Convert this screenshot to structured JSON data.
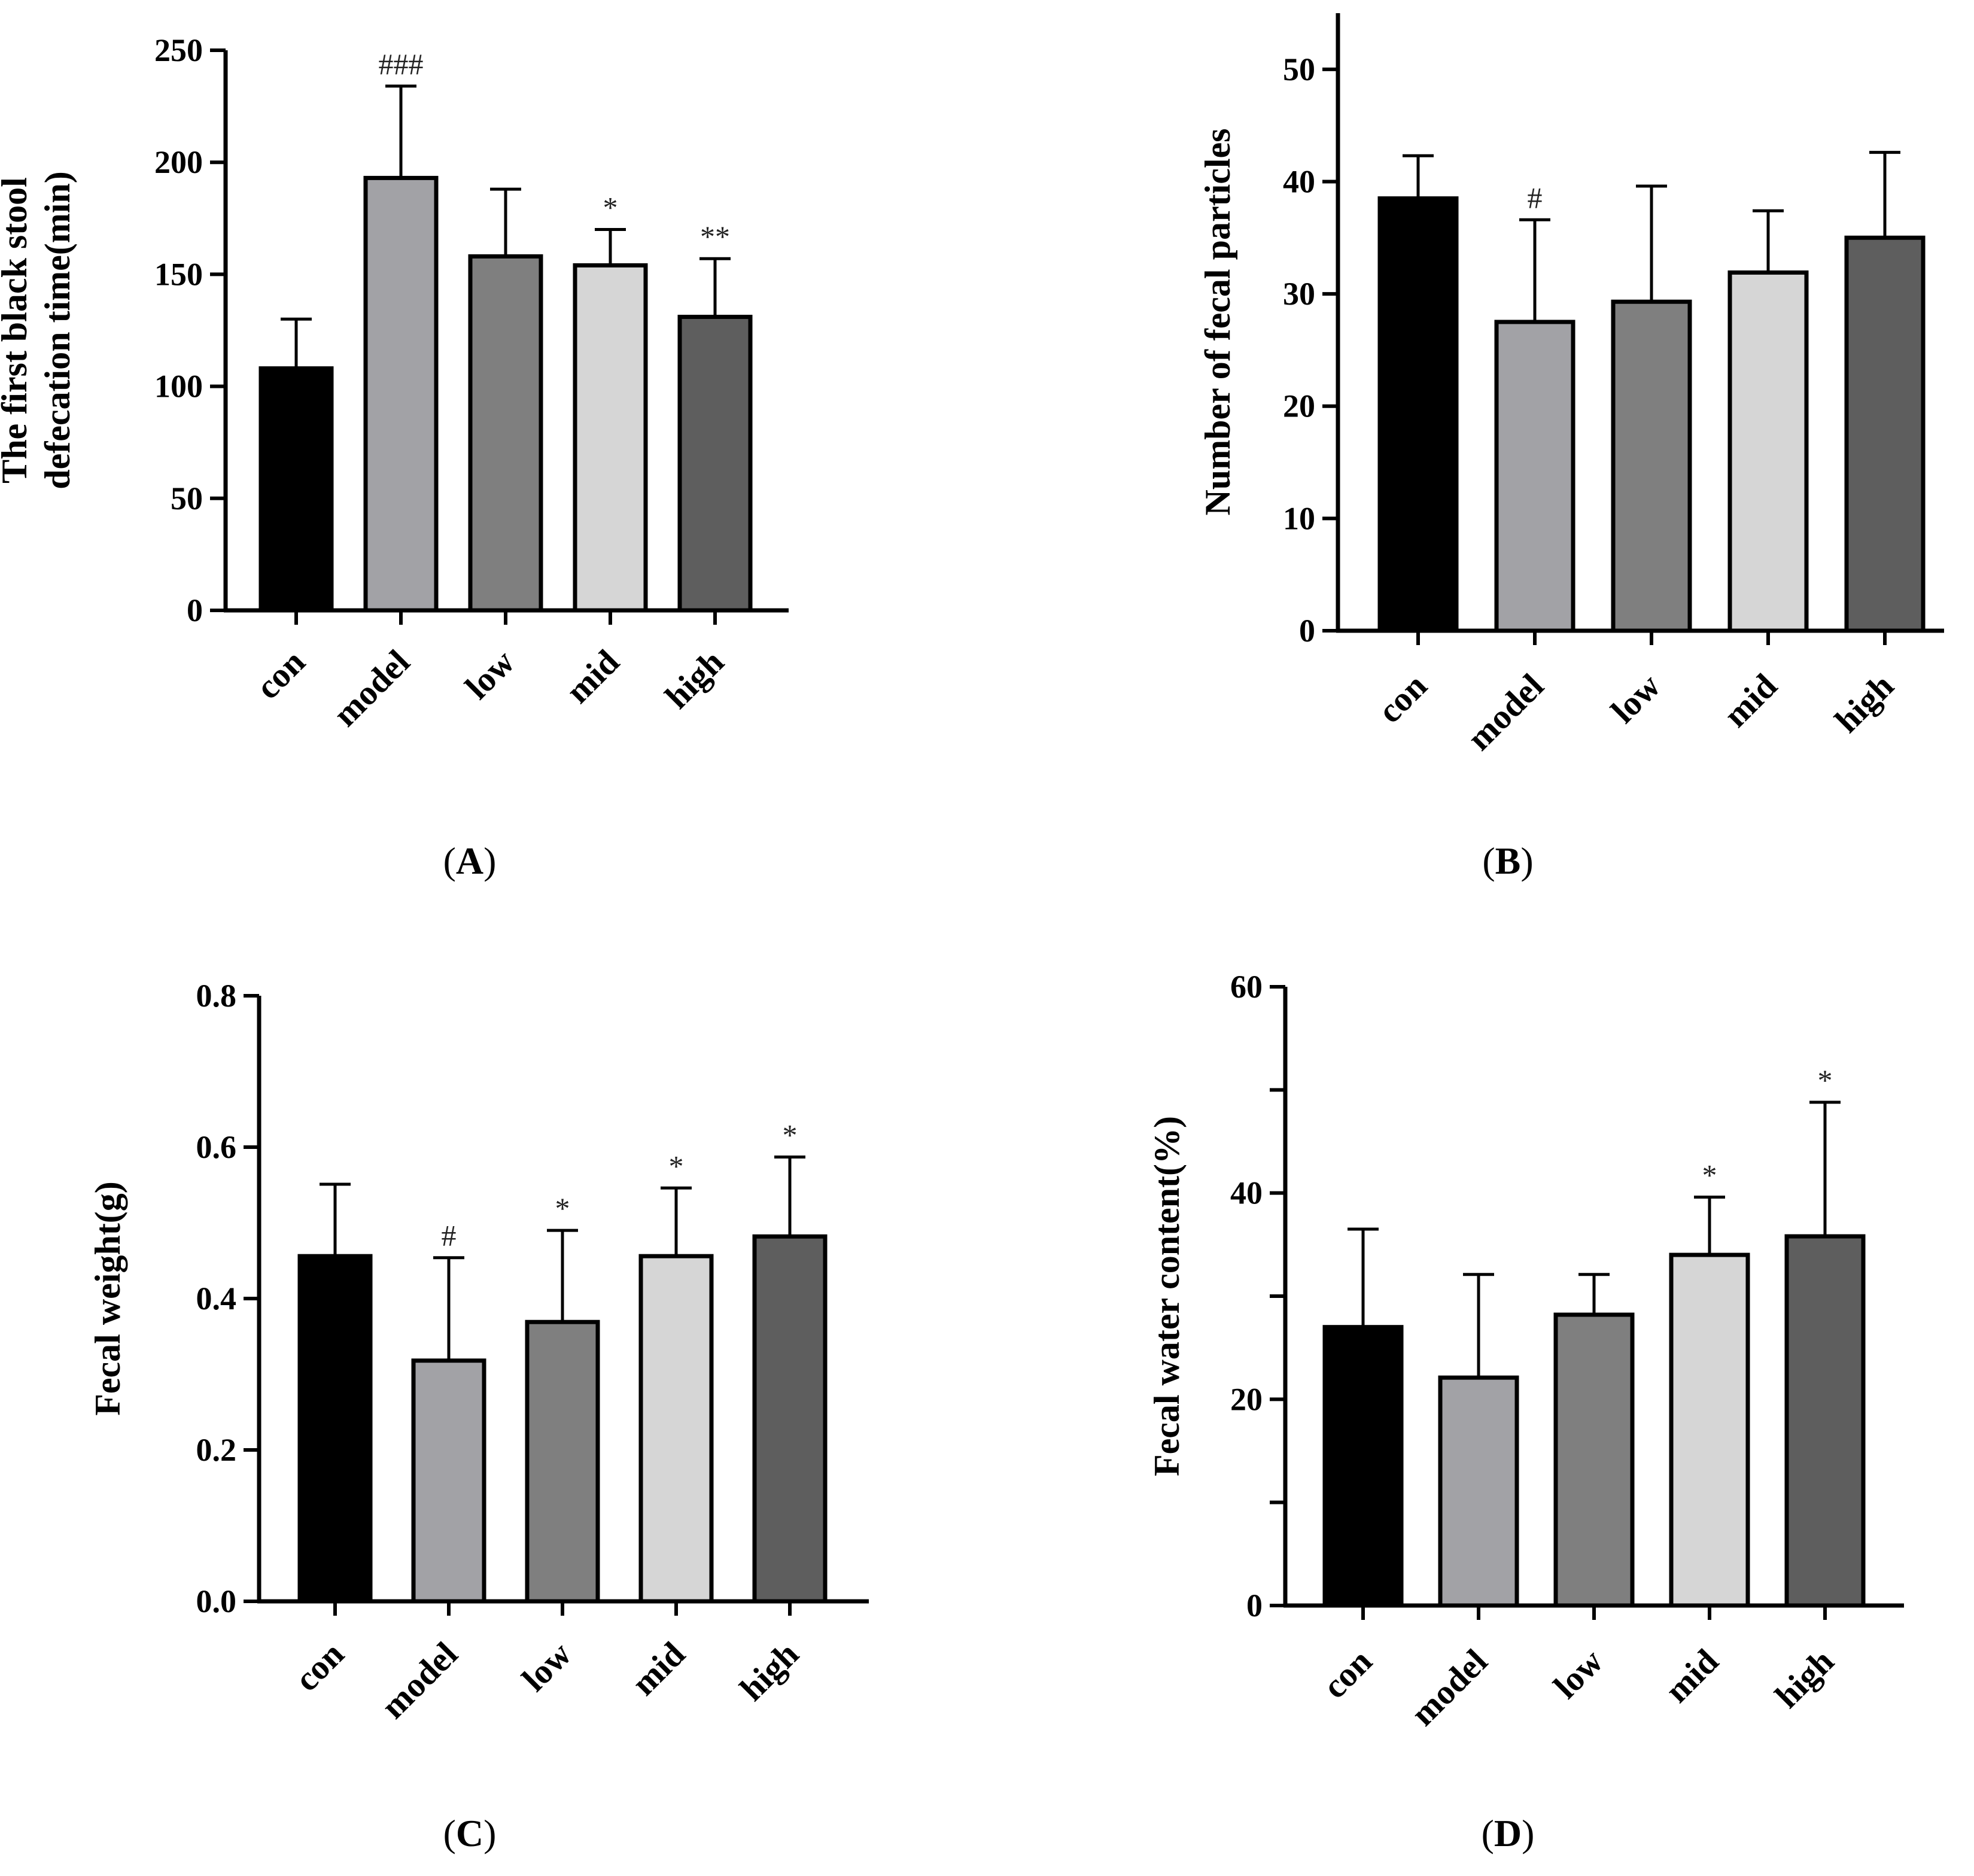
{
  "figure": {
    "panels": [
      "A",
      "B",
      "C",
      "D"
    ]
  },
  "colors": {
    "con": "#000000",
    "model": "#a2a2a6",
    "low": "#7f7f7f",
    "mid": "#d6d6d6",
    "high": "#5e5e5e",
    "axis": "#000000"
  },
  "chart_data": [
    {
      "id": "A",
      "type": "bar",
      "panel_label": "A",
      "categories": [
        "con",
        "model",
        "low",
        "mid",
        "high"
      ],
      "values": [
        108,
        193,
        158,
        154,
        131
      ],
      "error_upper": [
        130,
        234,
        188,
        170,
        157
      ],
      "annotations": [
        "",
        "###",
        "",
        "*",
        "**"
      ],
      "ylabel": "The first black stool defecation time(min)",
      "ylabel_lines": [
        "The first black stool",
        "defecation time(min)"
      ],
      "ylim": [
        0,
        250
      ],
      "yticks": [
        0,
        50,
        100,
        150,
        200,
        250
      ],
      "ytick_labels": [
        "0",
        "50",
        "100",
        "150",
        "200",
        "250"
      ]
    },
    {
      "id": "B",
      "type": "bar",
      "panel_label": "B",
      "categories": [
        "con",
        "model",
        "low",
        "mid",
        "high"
      ],
      "values": [
        38.5,
        27.5,
        29.3,
        31.9,
        35.0
      ],
      "error_upper": [
        42.3,
        36.6,
        39.6,
        37.4,
        42.6
      ],
      "annotations": [
        "",
        "#",
        "",
        "",
        ""
      ],
      "ylabel": "Number of fecal particles",
      "ylabel_lines": [
        "Number of fecal particles"
      ],
      "ylim": [
        0,
        55
      ],
      "yticks": [
        0,
        10,
        20,
        30,
        40,
        50
      ],
      "ytick_labels": [
        "0",
        "10",
        "20",
        "30",
        "40",
        "50"
      ]
    },
    {
      "id": "C",
      "type": "bar",
      "panel_label": "C",
      "categories": [
        "con",
        "model",
        "low",
        "mid",
        "high"
      ],
      "values": [
        0.456,
        0.318,
        0.369,
        0.456,
        0.482
      ],
      "error_upper": [
        0.551,
        0.454,
        0.49,
        0.546,
        0.587
      ],
      "annotations": [
        "",
        "#",
        "*",
        "*",
        "*"
      ],
      "ylabel": "Fecal weight(g)",
      "ylabel_lines": [
        "Fecal weight(g)"
      ],
      "ylim": [
        0,
        0.8
      ],
      "yticks": [
        0,
        0.2,
        0.4,
        0.6,
        0.8
      ],
      "ytick_labels": [
        "0.0",
        "0.2",
        "0.4",
        "0.6",
        "0.8"
      ]
    },
    {
      "id": "D",
      "type": "bar",
      "panel_label": "D",
      "categories": [
        "con",
        "model",
        "low",
        "mid",
        "high"
      ],
      "values": [
        27.0,
        22.1,
        28.2,
        34.0,
        35.8
      ],
      "error_upper": [
        36.5,
        32.1,
        32.1,
        39.6,
        48.8
      ],
      "annotations": [
        "",
        "",
        "",
        "*",
        "*"
      ],
      "ylabel": "Fecal water content(%)",
      "ylabel_lines": [
        "Fecal water content(%)"
      ],
      "ylim": [
        0,
        60
      ],
      "yticks": [
        0,
        10,
        20,
        30,
        40,
        50,
        60
      ],
      "ytick_labels": [
        "0",
        "",
        "20",
        "",
        "40",
        "",
        "60"
      ]
    }
  ]
}
